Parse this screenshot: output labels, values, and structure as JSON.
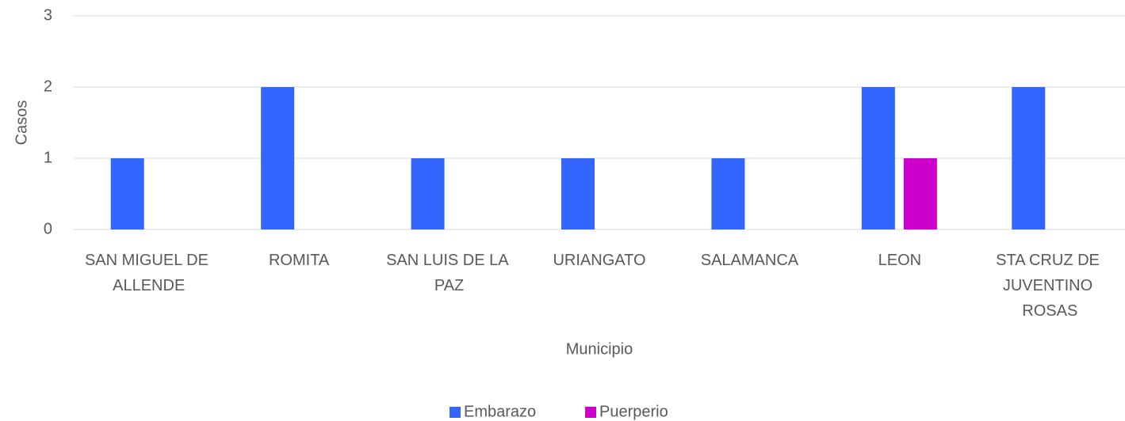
{
  "chart_data": {
    "type": "bar",
    "x_label": "Municipio",
    "y_label": "Casos",
    "categories": [
      "SAN MIGUEL DE ALLENDE",
      "ROMITA",
      "SAN LUIS DE LA PAZ",
      "URIANGATO",
      "SALAMANCA",
      "LEON",
      "STA CRUZ DE JUVENTINO ROSAS"
    ],
    "series": [
      {
        "name": "Embarazo",
        "color": "#3366ff",
        "values": [
          1,
          2,
          1,
          1,
          1,
          2,
          2
        ]
      },
      {
        "name": "Puerperio",
        "color": "#cc00cc",
        "values": [
          0,
          0,
          0,
          0,
          0,
          1,
          0
        ]
      }
    ],
    "ylim": [
      0,
      3
    ],
    "yticks": [
      0,
      1,
      2,
      3
    ],
    "grid": true,
    "legend": "bottom"
  }
}
